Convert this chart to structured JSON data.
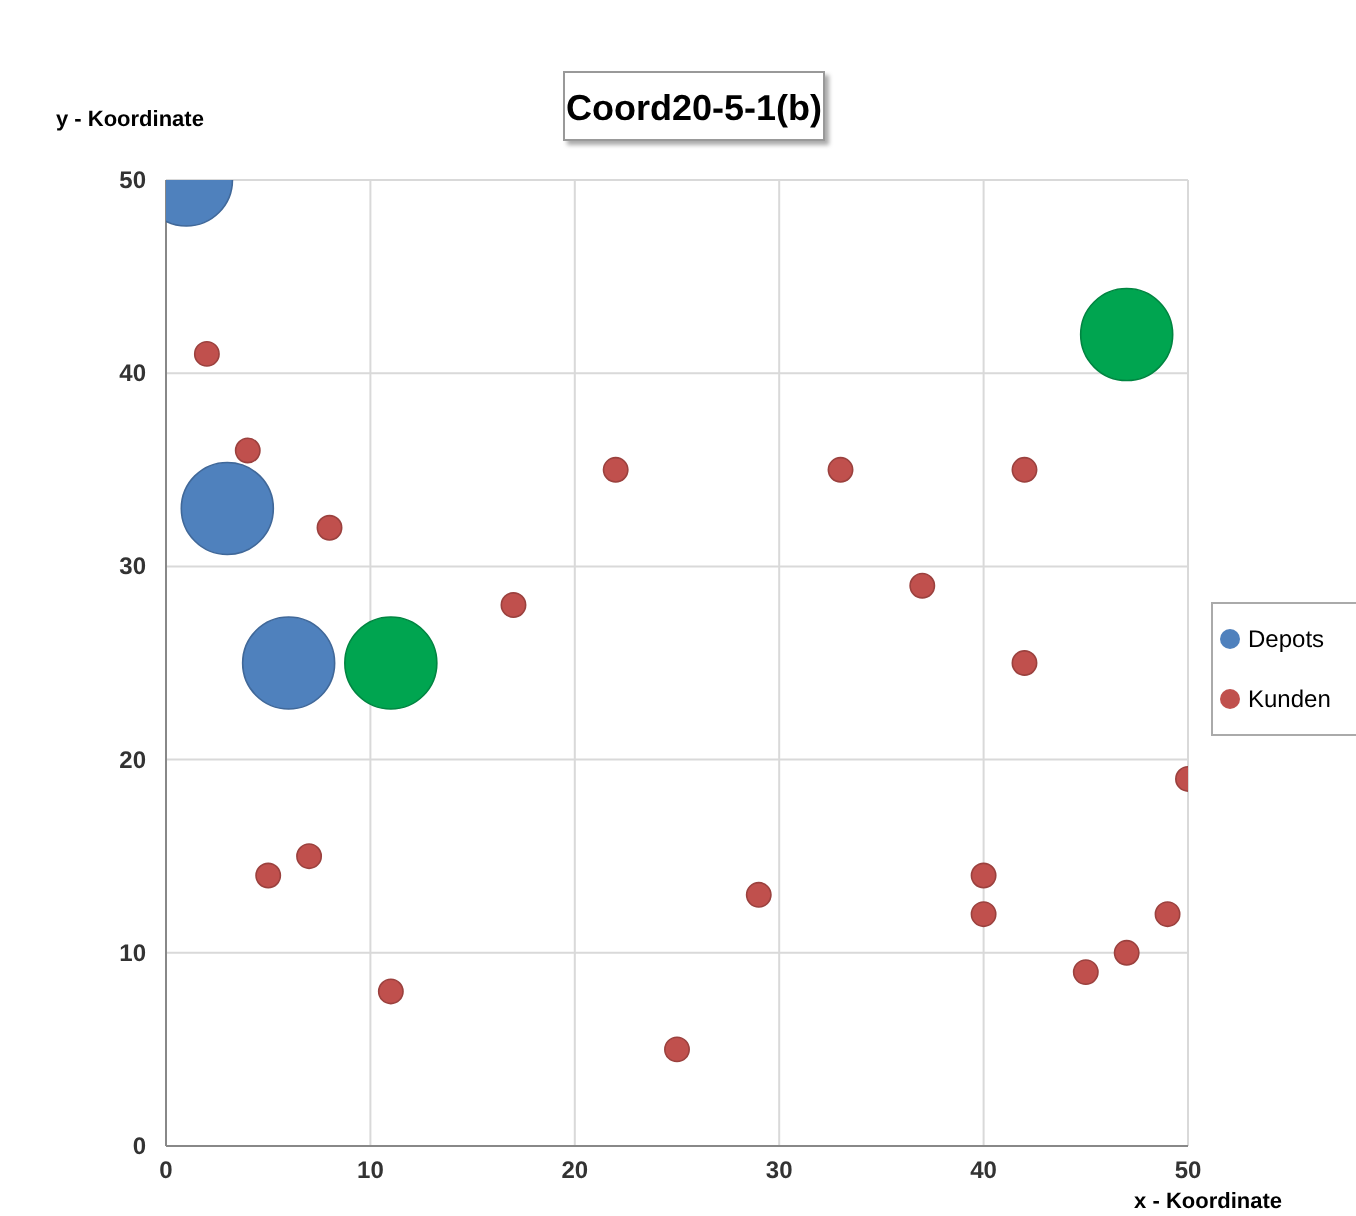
{
  "chart_data": {
    "type": "bubble",
    "title": "Coord20-5-1(b)",
    "xlabel": "x - Koordinate",
    "ylabel": "y - Koordinate",
    "xlim": [
      0,
      50
    ],
    "ylim": [
      0,
      50
    ],
    "xticks": [
      0,
      10,
      20,
      30,
      40,
      50
    ],
    "yticks": [
      0,
      10,
      20,
      30,
      40,
      50
    ],
    "grid": true,
    "legend": "right",
    "series": [
      {
        "name": "Depots",
        "color": "#4f81bd",
        "x": [
          1,
          3,
          6
        ],
        "values": [
          50,
          33,
          25
        ],
        "sizes": [
          1,
          1,
          1
        ]
      },
      {
        "color": "#00a550",
        "x": [
          11,
          47
        ],
        "values": [
          25,
          42
        ],
        "sizes": [
          1,
          1
        ]
      },
      {
        "name": "Kunden",
        "color": "#c0504d",
        "x": [
          2,
          4,
          8,
          17,
          22,
          33,
          42,
          37,
          42,
          50,
          40,
          40,
          49,
          47,
          45,
          29,
          25,
          11,
          5,
          7
        ],
        "values": [
          41,
          36,
          32,
          28,
          35,
          35,
          35,
          29,
          25,
          19,
          14,
          12,
          12,
          10,
          9,
          13,
          5,
          8,
          14,
          15
        ],
        "sizes": [
          0.07,
          0.07,
          0.07,
          0.07,
          0.07,
          0.07,
          0.07,
          0.07,
          0.07,
          0.07,
          0.07,
          0.07,
          0.07,
          0.07,
          0.07,
          0.07,
          0.07,
          0.07,
          0.07,
          0.07
        ]
      }
    ]
  }
}
